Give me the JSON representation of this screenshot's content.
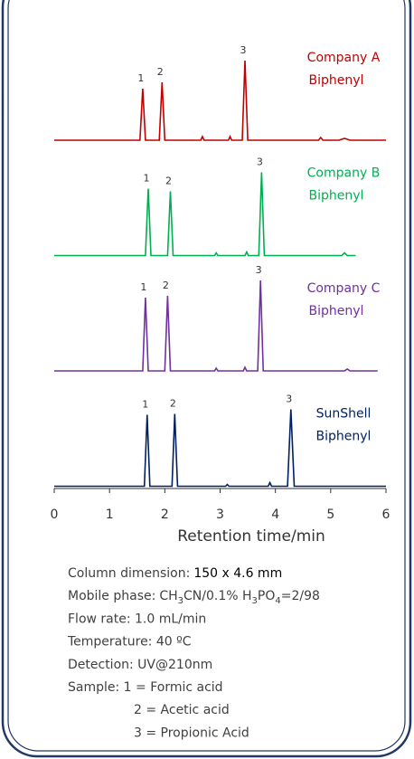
{
  "chart_data": {
    "type": "line",
    "x_label": "Retention time/min",
    "xlim": [
      0,
      6
    ],
    "xticks": [
      0,
      1,
      2,
      3,
      4,
      5,
      6
    ],
    "series": [
      {
        "name": "Company A",
        "column": "Biphenyl",
        "color": "#c00000",
        "peak_labels": [
          "1",
          "2",
          "3"
        ],
        "x": [
          0,
          1.55,
          1.6,
          1.65,
          1.9,
          1.95,
          2.0,
          2.65,
          2.68,
          2.71,
          3.15,
          3.18,
          3.21,
          3.4,
          3.45,
          3.5,
          4.78,
          4.82,
          4.86,
          5.15,
          5.25,
          5.35,
          6
        ],
        "values": [
          0,
          0,
          57,
          0,
          0,
          64,
          0,
          0,
          4,
          0,
          0,
          4,
          0,
          0,
          88,
          0,
          0,
          3,
          0,
          0,
          2,
          0,
          0
        ]
      },
      {
        "name": "Company B",
        "column": "Biphenyl",
        "color": "#00b050",
        "peak_labels": [
          "1",
          "2",
          "3"
        ],
        "x": [
          0,
          1.65,
          1.7,
          1.75,
          2.05,
          2.1,
          2.15,
          2.9,
          2.93,
          2.96,
          3.45,
          3.48,
          3.51,
          3.7,
          3.75,
          3.8,
          5.2,
          5.25,
          5.3,
          5.45
        ],
        "values": [
          0,
          0,
          74,
          0,
          0,
          71,
          0,
          0,
          3,
          0,
          0,
          4,
          0,
          0,
          92,
          0,
          0,
          3,
          0,
          0
        ]
      },
      {
        "name": "Company C",
        "column": "Biphenyl",
        "color": "#7030a0",
        "peak_labels": [
          "1",
          "2",
          "3"
        ],
        "x": [
          0,
          1.6,
          1.65,
          1.7,
          2.0,
          2.05,
          2.1,
          2.9,
          2.93,
          2.96,
          3.42,
          3.45,
          3.48,
          3.68,
          3.73,
          3.78,
          5.25,
          5.3,
          5.35,
          5.85
        ],
        "values": [
          0,
          0,
          81,
          0,
          0,
          83,
          0,
          0,
          3,
          0,
          0,
          4,
          0,
          0,
          100,
          0,
          0,
          2,
          0,
          0
        ]
      },
      {
        "name": "SunShell",
        "column": "Biphenyl",
        "color": "#002060",
        "peak_labels": [
          "1",
          "2",
          "3"
        ],
        "x": [
          0,
          1.63,
          1.68,
          1.73,
          2.13,
          2.18,
          2.23,
          3.1,
          3.13,
          3.16,
          3.87,
          3.9,
          3.93,
          4.22,
          4.28,
          4.34,
          6
        ],
        "values": [
          0,
          0,
          79,
          0,
          0,
          80,
          0,
          0,
          2,
          0,
          0,
          4,
          0,
          0,
          85,
          0,
          0
        ]
      }
    ]
  },
  "notes": {
    "column": {
      "label": "Column dimension:",
      "value": "150 x 4.6 mm"
    },
    "mobile_phase": {
      "label": "Mobile phase:",
      "parts": [
        "CH",
        "3",
        "CN/0.1% H",
        "3",
        "PO",
        "4",
        "=2/98"
      ]
    },
    "flow_rate": "Flow rate: 1.0 mL/min",
    "temperature": "Temperature: 40 ºC",
    "detection": "Detection: UV@210nm",
    "sample": [
      "Sample: 1 = Formic acid",
      "2 = Acetic acid",
      "3 = Propionic Acid"
    ]
  }
}
